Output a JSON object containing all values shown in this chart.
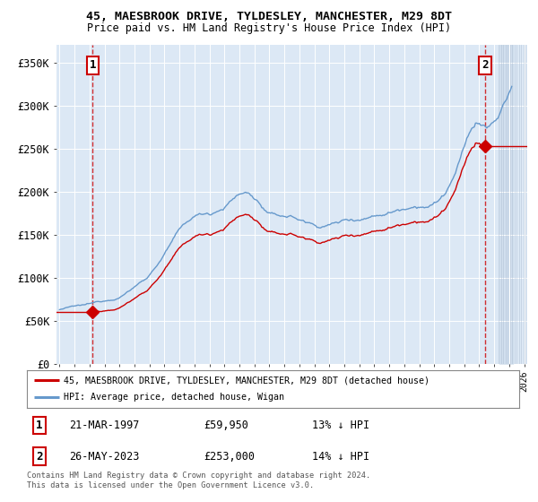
{
  "title1": "45, MAESBROOK DRIVE, TYLDESLEY, MANCHESTER, M29 8DT",
  "title2": "Price paid vs. HM Land Registry's House Price Index (HPI)",
  "legend_line1": "45, MAESBROOK DRIVE, TYLDESLEY, MANCHESTER, M29 8DT (detached house)",
  "legend_line2": "HPI: Average price, detached house, Wigan",
  "annotation1_date": "21-MAR-1997",
  "annotation1_price": "£59,950",
  "annotation1_hpi": "13% ↓ HPI",
  "annotation2_date": "26-MAY-2023",
  "annotation2_price": "£253,000",
  "annotation2_hpi": "14% ↓ HPI",
  "footer": "Contains HM Land Registry data © Crown copyright and database right 2024.\nThis data is licensed under the Open Government Licence v3.0.",
  "sale1_year": 1997.22,
  "sale1_price": 59950,
  "sale2_year": 2023.4,
  "sale2_price": 253000,
  "hpi_color": "#6699cc",
  "price_color": "#cc0000",
  "bg_color": "#dce8f5",
  "grid_color": "#c8d8e8",
  "ylim": [
    0,
    370000
  ],
  "xlim_start": 1994.8,
  "xlim_end": 2026.2
}
